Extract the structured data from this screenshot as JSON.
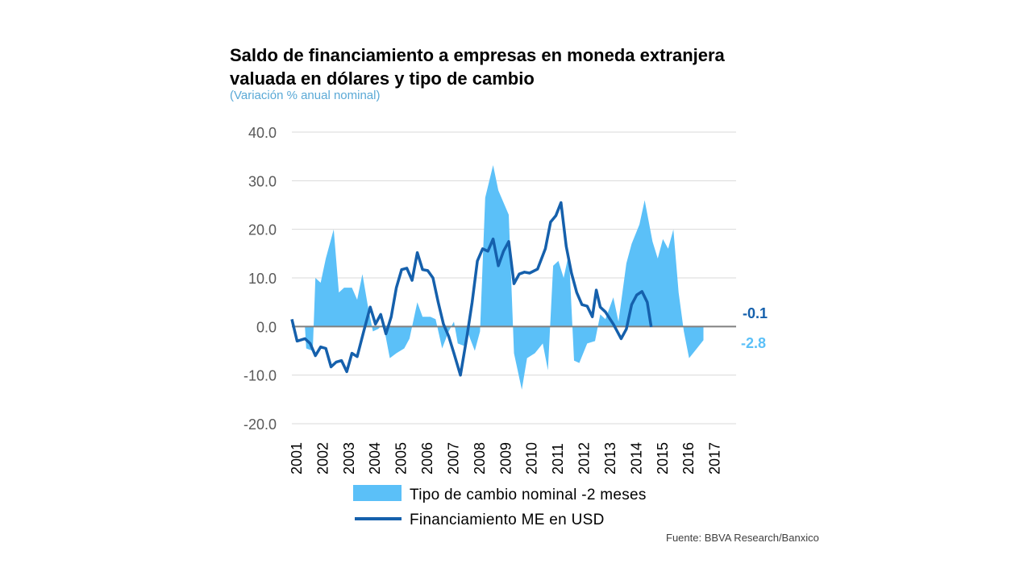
{
  "title_line1": "Saldo de financiamiento a empresas en moneda extranjera",
  "title_line2": "valuada en dólares y tipo de cambio",
  "subtitle": "(Variación % anual nominal)",
  "source": "Fuente: BBVA Research/Banxico",
  "colors": {
    "area": "#5bc0f8",
    "line": "#1560ac",
    "grid": "#d9d9d9",
    "zero": "#808080"
  },
  "chart_data": {
    "type": "area+line",
    "ylim": [
      -20,
      40
    ],
    "yticks": [
      40,
      30,
      20,
      10,
      0,
      -10,
      -20
    ],
    "ytick_labels": [
      "40.0",
      "30.0",
      "20.0",
      "10.0",
      "0.0",
      "-10.0",
      "-20.0"
    ],
    "x_labels": [
      "2001",
      "2002",
      "2003",
      "2004",
      "2005",
      "2006",
      "2007",
      "2008",
      "2009",
      "2010",
      "2011",
      "2012",
      "2013",
      "2014",
      "2015",
      "2016",
      "2017"
    ],
    "x_start": 2001.0,
    "x_end": 2018.0,
    "series": [
      {
        "name": "Tipo de cambio nominal -2 meses",
        "kind": "area",
        "points": [
          [
            2001.0,
            0
          ],
          [
            2001.5,
            0
          ],
          [
            2001.55,
            -4.5
          ],
          [
            2001.8,
            -5
          ],
          [
            2001.9,
            10
          ],
          [
            2002.1,
            9
          ],
          [
            2002.3,
            14
          ],
          [
            2002.6,
            20
          ],
          [
            2002.8,
            7
          ],
          [
            2003.0,
            8
          ],
          [
            2003.3,
            8
          ],
          [
            2003.5,
            5.5
          ],
          [
            2003.7,
            10.8
          ],
          [
            2003.9,
            4.5
          ],
          [
            2004.1,
            -1
          ],
          [
            2004.3,
            -0.5
          ],
          [
            2004.5,
            0.5
          ],
          [
            2004.75,
            -6.5
          ],
          [
            2005.0,
            -5.5
          ],
          [
            2005.3,
            -4.5
          ],
          [
            2005.5,
            -2.5
          ],
          [
            2005.8,
            5
          ],
          [
            2006.0,
            2
          ],
          [
            2006.3,
            2
          ],
          [
            2006.5,
            1.5
          ],
          [
            2006.75,
            -4.5
          ],
          [
            2007.0,
            -1
          ],
          [
            2007.2,
            1
          ],
          [
            2007.35,
            -3.5
          ],
          [
            2007.6,
            -4
          ],
          [
            2007.75,
            -1.5
          ],
          [
            2008.0,
            -5
          ],
          [
            2008.2,
            -1
          ],
          [
            2008.4,
            26.5
          ],
          [
            2008.7,
            33.2
          ],
          [
            2008.9,
            28
          ],
          [
            2009.3,
            23
          ],
          [
            2009.5,
            -5.5
          ],
          [
            2009.8,
            -13
          ],
          [
            2010.0,
            -6.5
          ],
          [
            2010.3,
            -5.5
          ],
          [
            2010.6,
            -3.5
          ],
          [
            2010.8,
            -9
          ],
          [
            2011.0,
            12.5
          ],
          [
            2011.2,
            13.5
          ],
          [
            2011.4,
            10
          ],
          [
            2011.6,
            15
          ],
          [
            2011.8,
            -7
          ],
          [
            2012.0,
            -7.5
          ],
          [
            2012.3,
            -3.5
          ],
          [
            2012.6,
            -3
          ],
          [
            2012.8,
            2.5
          ],
          [
            2013.0,
            1.5
          ],
          [
            2013.3,
            6
          ],
          [
            2013.5,
            1
          ],
          [
            2013.8,
            13
          ],
          [
            2014.0,
            17
          ],
          [
            2014.3,
            21
          ],
          [
            2014.5,
            26
          ],
          [
            2014.8,
            17.5
          ],
          [
            2015.0,
            14
          ],
          [
            2015.2,
            18
          ],
          [
            2015.4,
            16
          ],
          [
            2015.6,
            20
          ],
          [
            2015.8,
            7
          ],
          [
            2016.0,
            -1
          ],
          [
            2016.2,
            -6.5
          ],
          [
            2016.5,
            -4.5
          ],
          [
            2016.75,
            -2.8
          ]
        ],
        "end_value": -2.8,
        "end_label": "-2.8"
      },
      {
        "name": "Financiamiento ME en USD",
        "kind": "line",
        "points": [
          [
            2001.0,
            1.5
          ],
          [
            2001.2,
            -3
          ],
          [
            2001.5,
            -2.5
          ],
          [
            2001.7,
            -3.5
          ],
          [
            2001.9,
            -6
          ],
          [
            2002.1,
            -4.2
          ],
          [
            2002.3,
            -4.5
          ],
          [
            2002.5,
            -8.3
          ],
          [
            2002.7,
            -7.3
          ],
          [
            2002.9,
            -7
          ],
          [
            2003.1,
            -9.3
          ],
          [
            2003.3,
            -5.5
          ],
          [
            2003.5,
            -6.2
          ],
          [
            2003.75,
            -1
          ],
          [
            2004.0,
            4
          ],
          [
            2004.2,
            0.5
          ],
          [
            2004.4,
            2.5
          ],
          [
            2004.6,
            -1.5
          ],
          [
            2004.8,
            2
          ],
          [
            2005.0,
            8
          ],
          [
            2005.2,
            11.7
          ],
          [
            2005.4,
            12
          ],
          [
            2005.6,
            9.5
          ],
          [
            2005.8,
            15.2
          ],
          [
            2006.0,
            11.7
          ],
          [
            2006.2,
            11.5
          ],
          [
            2006.4,
            10
          ],
          [
            2006.6,
            5
          ],
          [
            2006.8,
            0.5
          ],
          [
            2007.0,
            -2
          ],
          [
            2007.2,
            -5.5
          ],
          [
            2007.45,
            -10
          ],
          [
            2007.7,
            -2
          ],
          [
            2007.9,
            5
          ],
          [
            2008.1,
            13.5
          ],
          [
            2008.3,
            16
          ],
          [
            2008.5,
            15.5
          ],
          [
            2008.7,
            18
          ],
          [
            2008.9,
            12.5
          ],
          [
            2009.1,
            15.5
          ],
          [
            2009.3,
            17.5
          ],
          [
            2009.5,
            8.8
          ],
          [
            2009.7,
            10.8
          ],
          [
            2009.9,
            11.2
          ],
          [
            2010.1,
            11
          ],
          [
            2010.4,
            11.8
          ],
          [
            2010.7,
            16
          ],
          [
            2010.9,
            21.5
          ],
          [
            2011.1,
            22.8
          ],
          [
            2011.3,
            25.5
          ],
          [
            2011.5,
            16.5
          ],
          [
            2011.7,
            11
          ],
          [
            2011.9,
            7
          ],
          [
            2012.1,
            4.5
          ],
          [
            2012.3,
            4.2
          ],
          [
            2012.5,
            2
          ],
          [
            2012.65,
            7.5
          ],
          [
            2012.8,
            4
          ],
          [
            2013.0,
            3
          ],
          [
            2013.3,
            0.5
          ],
          [
            2013.6,
            -2.5
          ],
          [
            2013.8,
            -0.5
          ],
          [
            2014.0,
            4.5
          ],
          [
            2014.2,
            6.5
          ],
          [
            2014.4,
            7.2
          ],
          [
            2014.6,
            5
          ],
          [
            2014.75,
            -0.1
          ]
        ],
        "end_value": -0.1,
        "end_label": "-0.1"
      }
    ]
  }
}
